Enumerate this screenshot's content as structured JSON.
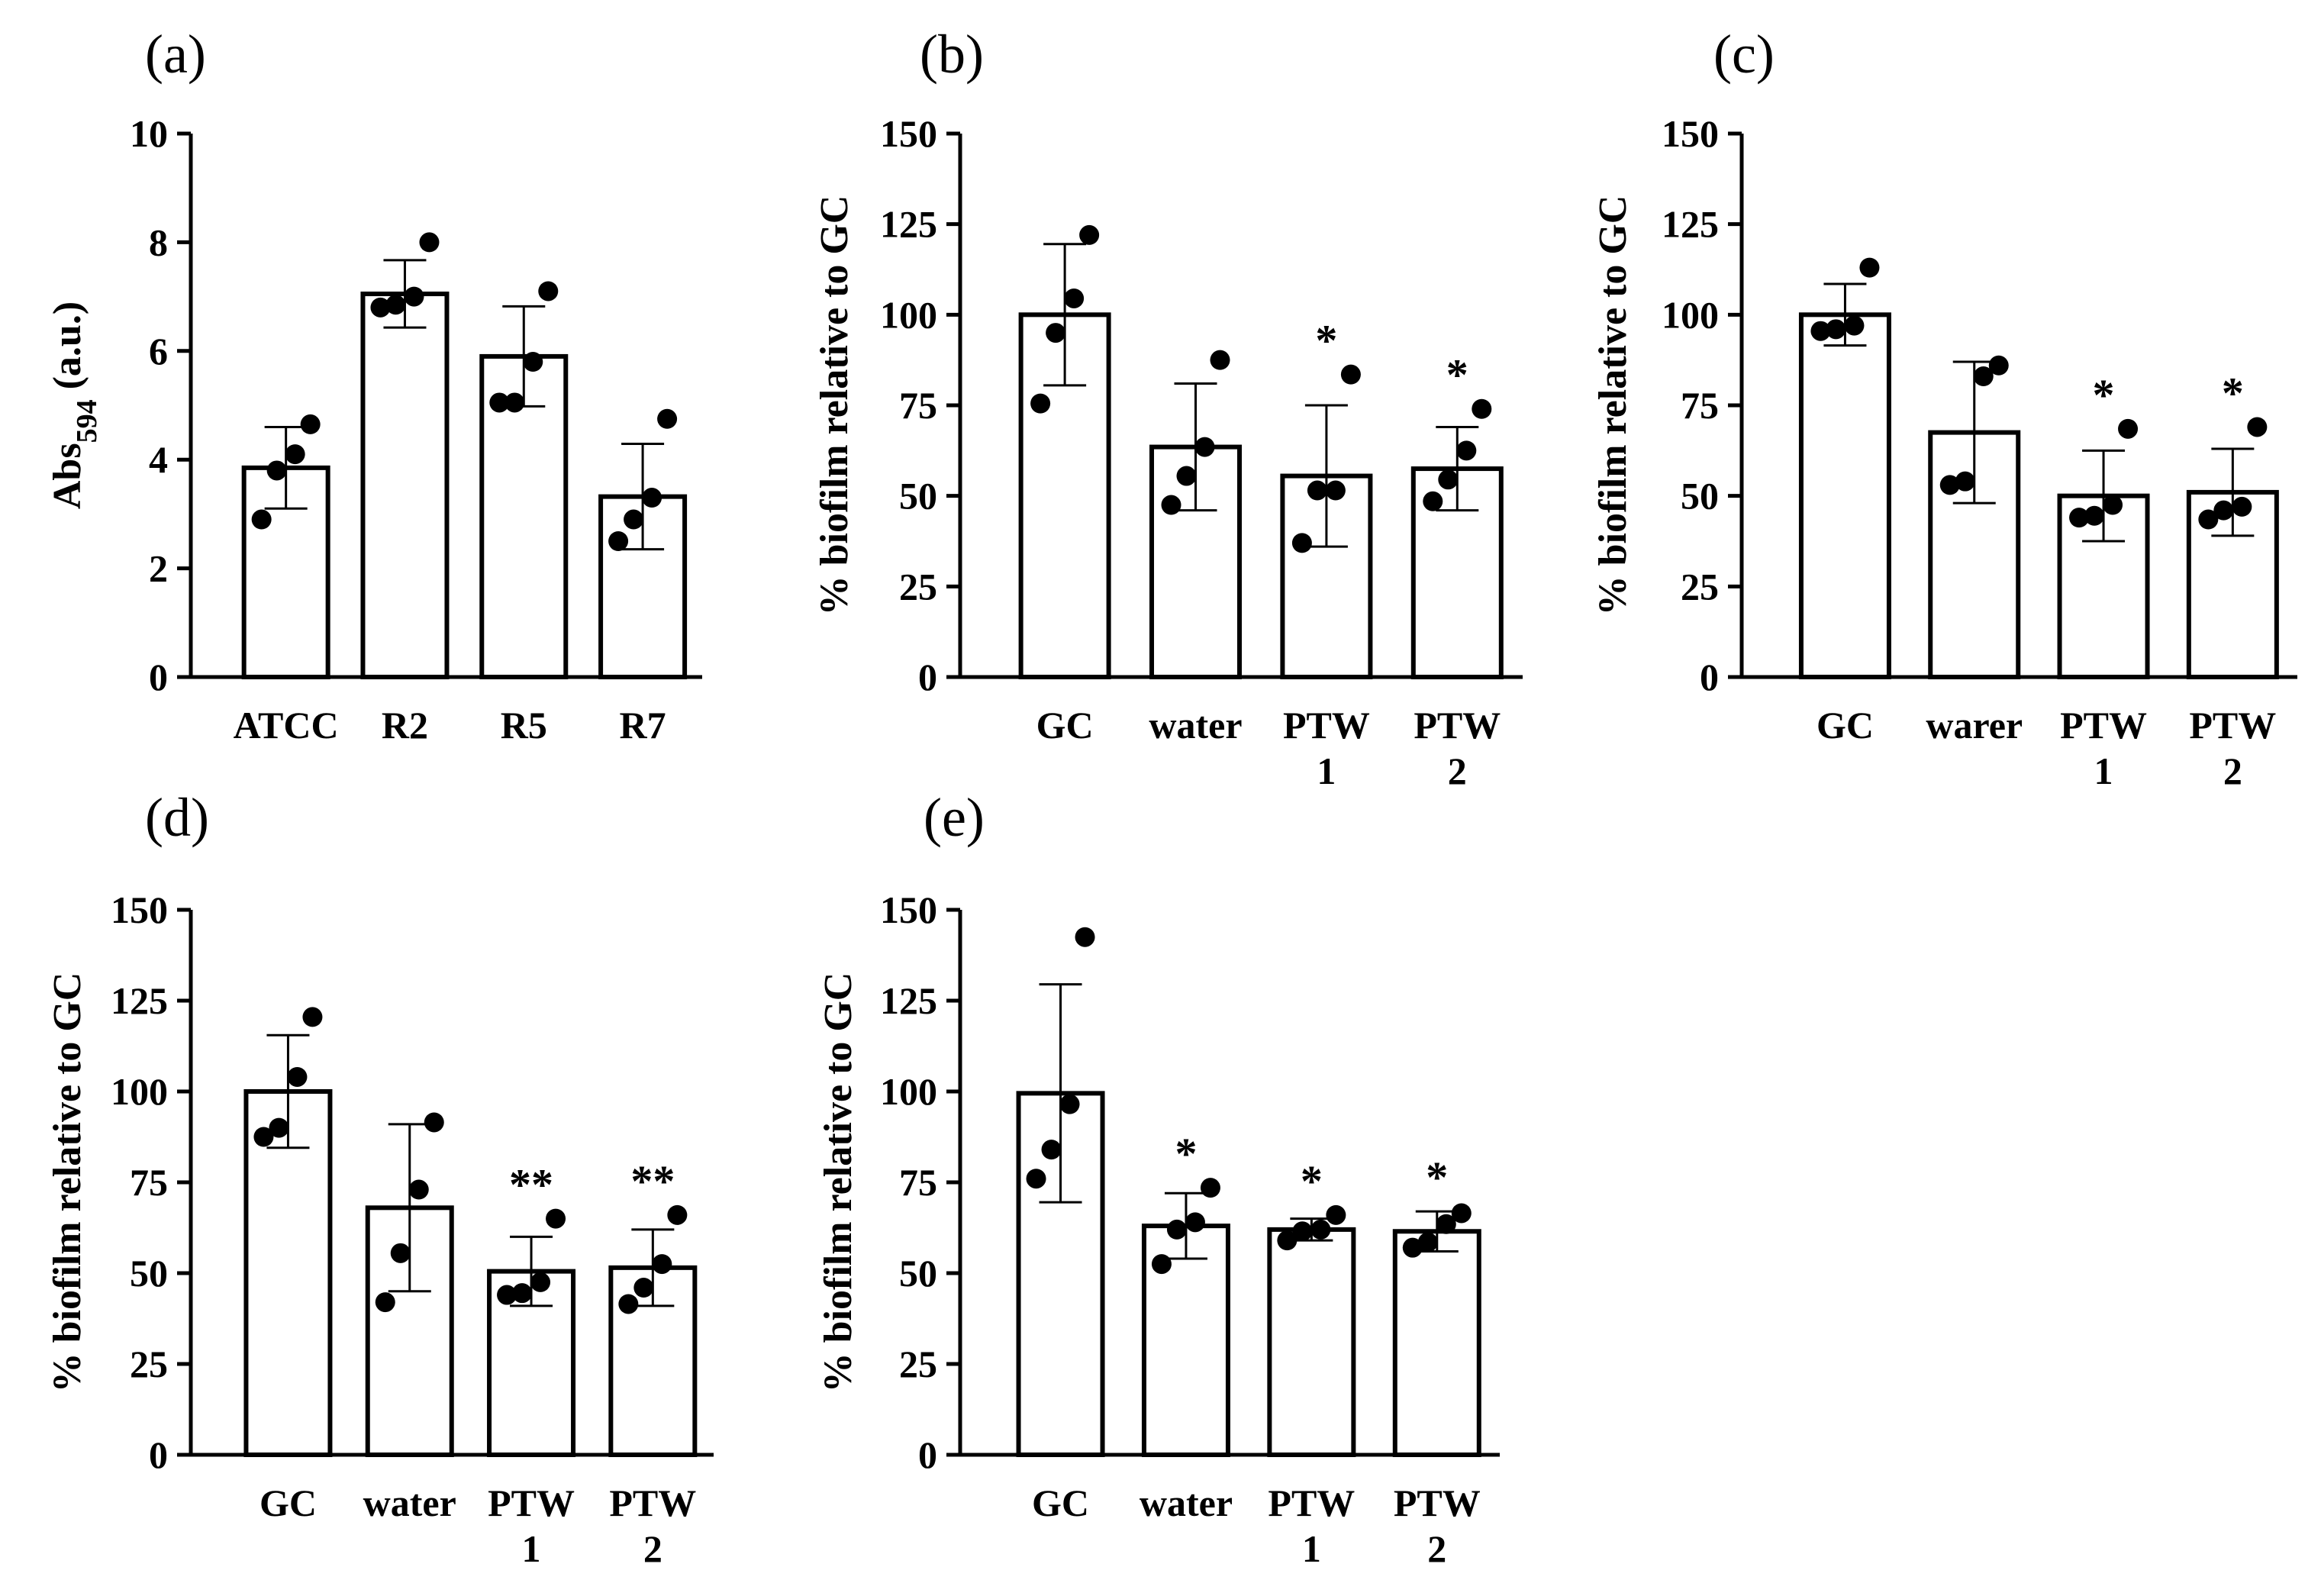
{
  "chart_data": [
    {
      "panel": "(a)",
      "type": "bar",
      "ylabel": "Abs",
      "ylabel_sub": "594",
      "ylabel_suffix": " (a.u.)",
      "ylim": [
        0,
        10
      ],
      "yticks": [
        0,
        2,
        4,
        6,
        8,
        10
      ],
      "categories": [
        [
          "ATCC"
        ],
        [
          "R2"
        ],
        [
          "R5"
        ],
        [
          "R7"
        ]
      ],
      "means": [
        3.85,
        7.05,
        5.9,
        3.32
      ],
      "errors": [
        0.75,
        0.62,
        0.92,
        0.97
      ],
      "points": [
        [
          2.9,
          3.8,
          4.1,
          4.65
        ],
        [
          6.8,
          6.85,
          7.0,
          8.0
        ],
        [
          5.05,
          5.05,
          5.8,
          7.1
        ],
        [
          2.5,
          2.9,
          3.3,
          4.75
        ]
      ],
      "annotations": [
        "",
        "",
        "",
        ""
      ]
    },
    {
      "panel": "(b)",
      "type": "bar",
      "ylabel": "% biofilm relative to GC",
      "ylim": [
        0,
        150
      ],
      "yticks": [
        0,
        25,
        50,
        75,
        100,
        125,
        150
      ],
      "categories": [
        [
          "GC"
        ],
        [
          "water"
        ],
        [
          "PTW",
          "1"
        ],
        [
          "PTW",
          "2"
        ]
      ],
      "means": [
        100,
        63.5,
        55.5,
        57.5
      ],
      "errors": [
        19.5,
        17.5,
        19.5,
        11.5
      ],
      "points": [
        [
          75.5,
          95,
          104.5,
          122
        ],
        [
          47.5,
          55.5,
          63.5,
          87.5
        ],
        [
          37,
          51.5,
          51.5,
          83.5
        ],
        [
          48.5,
          54.5,
          62.5,
          74
        ]
      ],
      "annotations": [
        "",
        "",
        "*",
        "*"
      ]
    },
    {
      "panel": "(c)",
      "type": "bar",
      "ylabel": "% biofilm relative to GC",
      "ylim": [
        0,
        150
      ],
      "yticks": [
        0,
        25,
        50,
        75,
        100,
        125,
        150
      ],
      "categories": [
        [
          "GC"
        ],
        [
          "warer"
        ],
        [
          "PTW",
          "1"
        ],
        [
          "PTW",
          "2"
        ]
      ],
      "means": [
        100,
        67.5,
        50,
        51
      ],
      "errors": [
        8.5,
        19.5,
        12.5,
        12
      ],
      "points": [
        [
          95.5,
          96,
          97,
          113
        ],
        [
          53,
          54,
          83,
          86
        ],
        [
          44,
          44.5,
          47.5,
          68.5
        ],
        [
          43.5,
          46,
          47,
          69
        ]
      ],
      "annotations": [
        "",
        "",
        "*",
        "*"
      ]
    },
    {
      "panel": "(d)",
      "type": "bar",
      "ylabel": "% biofilm relative to GC",
      "ylim": [
        0,
        150
      ],
      "yticks": [
        0,
        25,
        50,
        75,
        100,
        125,
        150
      ],
      "categories": [
        [
          "GC"
        ],
        [
          "water"
        ],
        [
          "PTW",
          "1"
        ],
        [
          "PTW",
          "2"
        ]
      ],
      "means": [
        100,
        68,
        50.5,
        51.5
      ],
      "errors": [
        15.5,
        23,
        9.5,
        10.5
      ],
      "points": [
        [
          87.5,
          90,
          104,
          120.5
        ],
        [
          42,
          55.5,
          73,
          91.5
        ],
        [
          44,
          44.5,
          47.5,
          65
        ],
        [
          41.5,
          46,
          52.5,
          66
        ]
      ],
      "annotations": [
        "",
        "",
        "**",
        "**"
      ]
    },
    {
      "panel": "(e)",
      "type": "bar",
      "ylabel": "% biofilm relative to GC",
      "ylim": [
        0,
        150
      ],
      "yticks": [
        0,
        25,
        50,
        75,
        100,
        125,
        150
      ],
      "categories": [
        [
          "GC"
        ],
        [
          "water"
        ],
        [
          "PTW",
          "1"
        ],
        [
          "PTW",
          "2"
        ]
      ],
      "means": [
        99.5,
        63,
        62,
        61.5
      ],
      "errors": [
        30,
        9,
        3,
        5.5
      ],
      "points": [
        [
          76,
          84,
          96.5,
          142.5
        ],
        [
          52.5,
          62,
          64,
          73.5
        ],
        [
          59,
          61.5,
          62,
          66
        ],
        [
          57,
          58.5,
          63.5,
          66.5
        ]
      ],
      "annotations": [
        "",
        "*",
        "*",
        "*"
      ]
    }
  ]
}
